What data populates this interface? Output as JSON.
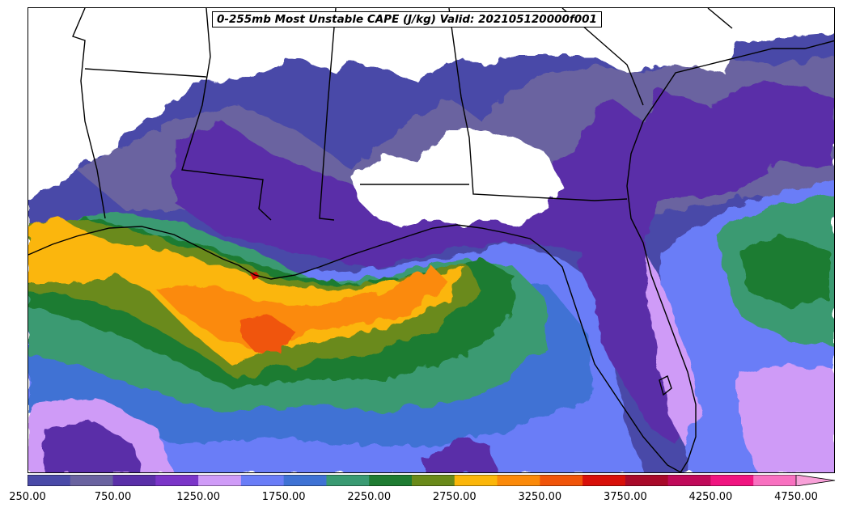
{
  "title": "0-255mb Most Unstable CAPE (J/kg) Valid: 202105120000f001",
  "colorbar": {
    "colors": [
      "#4a4aa8",
      "#6a63a0",
      "#5a2fa8",
      "#7b35c8",
      "#cf9bf7",
      "#6a7df7",
      "#3f72d4",
      "#3a9a72",
      "#1f7c32",
      "#6a8a1a",
      "#fbb60a",
      "#fb8a0a",
      "#f0540a",
      "#d8100a",
      "#a80a2a",
      "#c00a5a",
      "#f01480",
      "#f870c0"
    ],
    "tick_labels": [
      "250.00",
      "750.00",
      "1250.00",
      "1750.00",
      "2250.00",
      "2750.00",
      "3250.00",
      "3750.00",
      "4250.00",
      "4750.00"
    ],
    "extend": "max"
  },
  "map": {
    "background": "#ffffff",
    "coast_color": "#000000"
  }
}
